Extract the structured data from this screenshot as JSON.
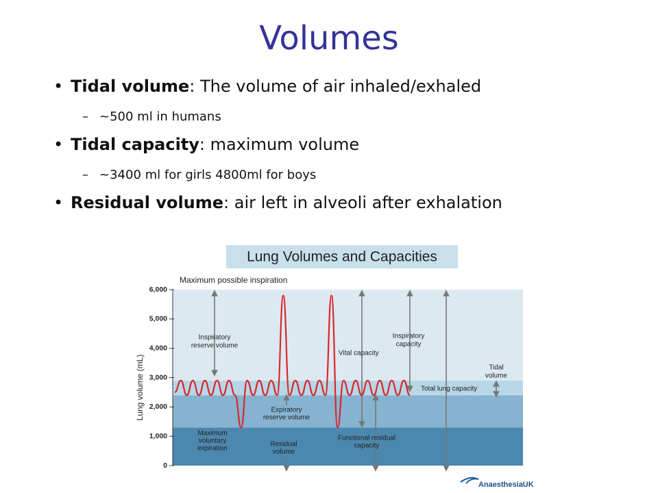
{
  "title": "Volumes",
  "bullets": [
    {
      "term": "Tidal volume",
      "text": ": The volume of air inhaled/exhaled",
      "sub": "~500 ml in humans"
    },
    {
      "term": "Tidal capacity",
      "text": ": maximum volume",
      "sub": "~3400 ml for girls 4800ml for boys"
    },
    {
      "term": "Residual volume",
      "text": ": air left in alveoli after exhalation"
    }
  ],
  "chart_data": {
    "type": "line",
    "title": "Lung Volumes and Capacities",
    "ylabel": "Lung volume (mL)",
    "ylim": [
      0,
      6000
    ],
    "yticks": [
      0,
      {
        "value": 1000,
        "label": "1,000"
      },
      {
        "value": 2000,
        "label": "2,000"
      },
      {
        "value": 3000,
        "label": "3,000"
      },
      {
        "value": 4000,
        "label": "4,000"
      },
      {
        "value": 5000,
        "label": "5,000"
      },
      {
        "value": 6000,
        "label": "6,000"
      }
    ],
    "zones": [
      {
        "from": 0,
        "to": 1300,
        "color": "#4b87ae"
      },
      {
        "from": 1300,
        "to": 2400,
        "color": "#86b3d0"
      },
      {
        "from": 2400,
        "to": 2900,
        "color": "#b9d6e6"
      },
      {
        "from": 2900,
        "to": 6000,
        "color": "#dde9f1"
      }
    ],
    "series": [
      {
        "color": "#d9262b",
        "values": [
          2500,
          2900,
          2400,
          2900,
          2400,
          2900,
          2400,
          2900,
          2400,
          2900,
          2400,
          1300,
          2900,
          2400,
          2900,
          2400,
          2900,
          2400,
          5800,
          2400,
          2900,
          2400,
          2900,
          2400,
          2900,
          2400,
          5800,
          1300,
          2900,
          2400,
          2900,
          2400,
          2900,
          2400,
          2900,
          2400,
          2900,
          2400,
          2900,
          2400
        ]
      }
    ],
    "annotations": {
      "max_inspiration": [
        "Maximum possible inspiration"
      ],
      "irv": [
        "Inspiratory",
        "reserve volume"
      ],
      "vital": [
        "Vital capacity"
      ],
      "ic": [
        "Inspiratory",
        "capacity"
      ],
      "tidal": [
        "Tidal",
        "volume"
      ],
      "tlc": [
        "Total lung capacity"
      ],
      "erv": [
        "Expiratory",
        "reserve volume"
      ],
      "mve": [
        "Maximum",
        "voluntary",
        "expiration"
      ],
      "rv": [
        "Residual",
        "volume"
      ],
      "frc": [
        "Functional residual",
        "capacity"
      ]
    }
  },
  "logo": "AnaesthesiaUK"
}
